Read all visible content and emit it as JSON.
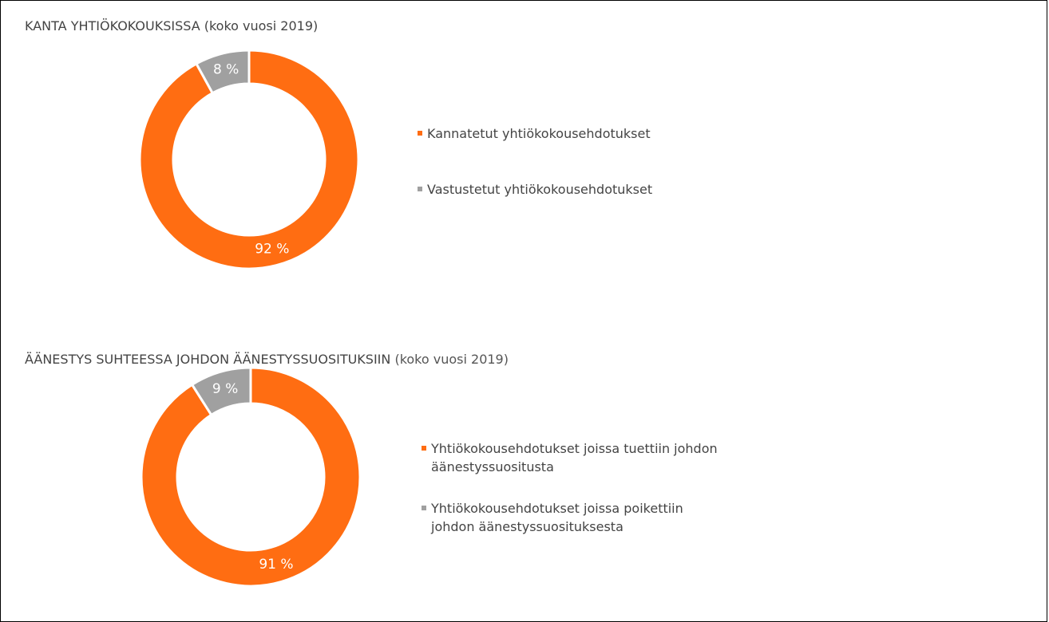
{
  "chart_data": [
    {
      "type": "donut",
      "title": "KANTA YHTIÖKOKOUKSISSA (koko vuosi 2019)",
      "categories": [
        "Kannatetut yhtiökokousehdotukset",
        "Vastustetut yhtiökokousehdotukset"
      ],
      "values": [
        92,
        8
      ],
      "value_labels": [
        "92 %",
        "8 %"
      ],
      "colors": [
        "#ff6d12",
        "#a0a0a0"
      ]
    },
    {
      "type": "donut",
      "title": "ÄÄNESTYS SUHTEESSA JOHDON ÄÄNESTYSSUOSITUKSIIN",
      "subtitle": "(koko vuosi 2019)",
      "categories": [
        "Yhtiökokousehdotukset joissa tuettiin johdon äänestyssuositusta",
        "Yhtiökokousehdotukset joissa poikettiin johdon äänestyssuosituksesta"
      ],
      "values": [
        91,
        9
      ],
      "value_labels": [
        "91 %",
        "9 %"
      ],
      "colors": [
        "#ff6d12",
        "#a0a0a0"
      ]
    }
  ]
}
